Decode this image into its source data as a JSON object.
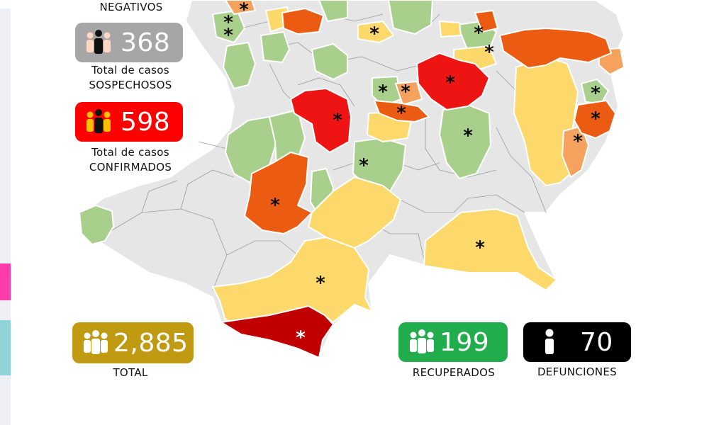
{
  "colors": {
    "no_cases": "#e6e6e6",
    "level_green": "#a8cf8c",
    "level_yellow": "#fdd96b",
    "level_orange_light": "#f6a25f",
    "level_orange": "#ec5b12",
    "level_red": "#ef1414",
    "level_darkred": "#c00000",
    "badge_gray": "#a6a6a6",
    "badge_red": "#ff0000",
    "badge_gold": "#c09a10",
    "badge_green": "#21ad4b",
    "badge_black": "#000000"
  },
  "stats": {
    "negativos": {
      "label": "NEGATIVOS",
      "icon": "people-group-icon"
    },
    "sospechosos": {
      "value": "368",
      "label_line1": "Total de casos",
      "label_line2": "SOSPECHOSOS",
      "icon": "people-group-icon"
    },
    "confirmados": {
      "value": "598",
      "label_line1": "Total de casos",
      "label_line2": "CONFIRMADOS",
      "icon": "people-group-icon"
    },
    "total": {
      "value": "2,885",
      "label": "TOTAL",
      "icon": "people-group-icon"
    },
    "recuperados": {
      "value": "199",
      "label": "RECUPERADOS",
      "icon": "people-group-icon"
    },
    "defunciones": {
      "value": "70",
      "label": "DEFUNCIONES",
      "icon": "person-icon"
    }
  },
  "map": {
    "marker": "*"
  }
}
